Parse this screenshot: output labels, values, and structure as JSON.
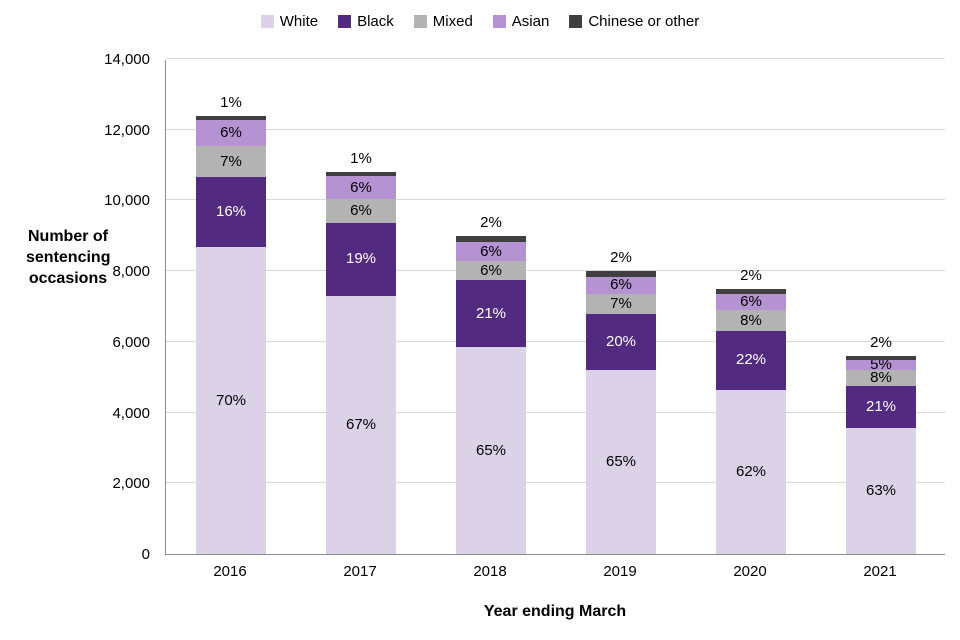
{
  "chart_data": {
    "type": "bar",
    "stacked": true,
    "title": "",
    "xlabel": "Year ending March",
    "ylabel": "Number of sentencing occasions",
    "categories": [
      "2016",
      "2017",
      "2018",
      "2019",
      "2020",
      "2021"
    ],
    "totals": [
      12400,
      10900,
      9000,
      8000,
      7500,
      5650
    ],
    "series": [
      {
        "name": "White",
        "color": "#DCD2E8",
        "label_color": "#000000",
        "percents": [
          70,
          67,
          65,
          65,
          62,
          63
        ]
      },
      {
        "name": "Black",
        "color": "#522A7F",
        "label_color": "#FFFFFF",
        "percents": [
          16,
          19,
          21,
          20,
          22,
          21
        ]
      },
      {
        "name": "Mixed",
        "color": "#B3B3B3",
        "label_color": "#000000",
        "percents": [
          7,
          6,
          6,
          7,
          8,
          8
        ]
      },
      {
        "name": "Asian",
        "color": "#B592D2",
        "label_color": "#000000",
        "percents": [
          6,
          6,
          6,
          6,
          6,
          5
        ]
      },
      {
        "name": "Chinese or other",
        "color": "#3F3F3F",
        "label_color": "#000000",
        "percents": [
          1,
          1,
          2,
          2,
          2,
          2
        ]
      }
    ],
    "ylim": [
      0,
      14000
    ],
    "ytick_step": 2000,
    "grid": true,
    "legend_position": "top",
    "colors": {
      "gridline": "#d9d9d9",
      "axis": "#8c8c8c"
    }
  }
}
